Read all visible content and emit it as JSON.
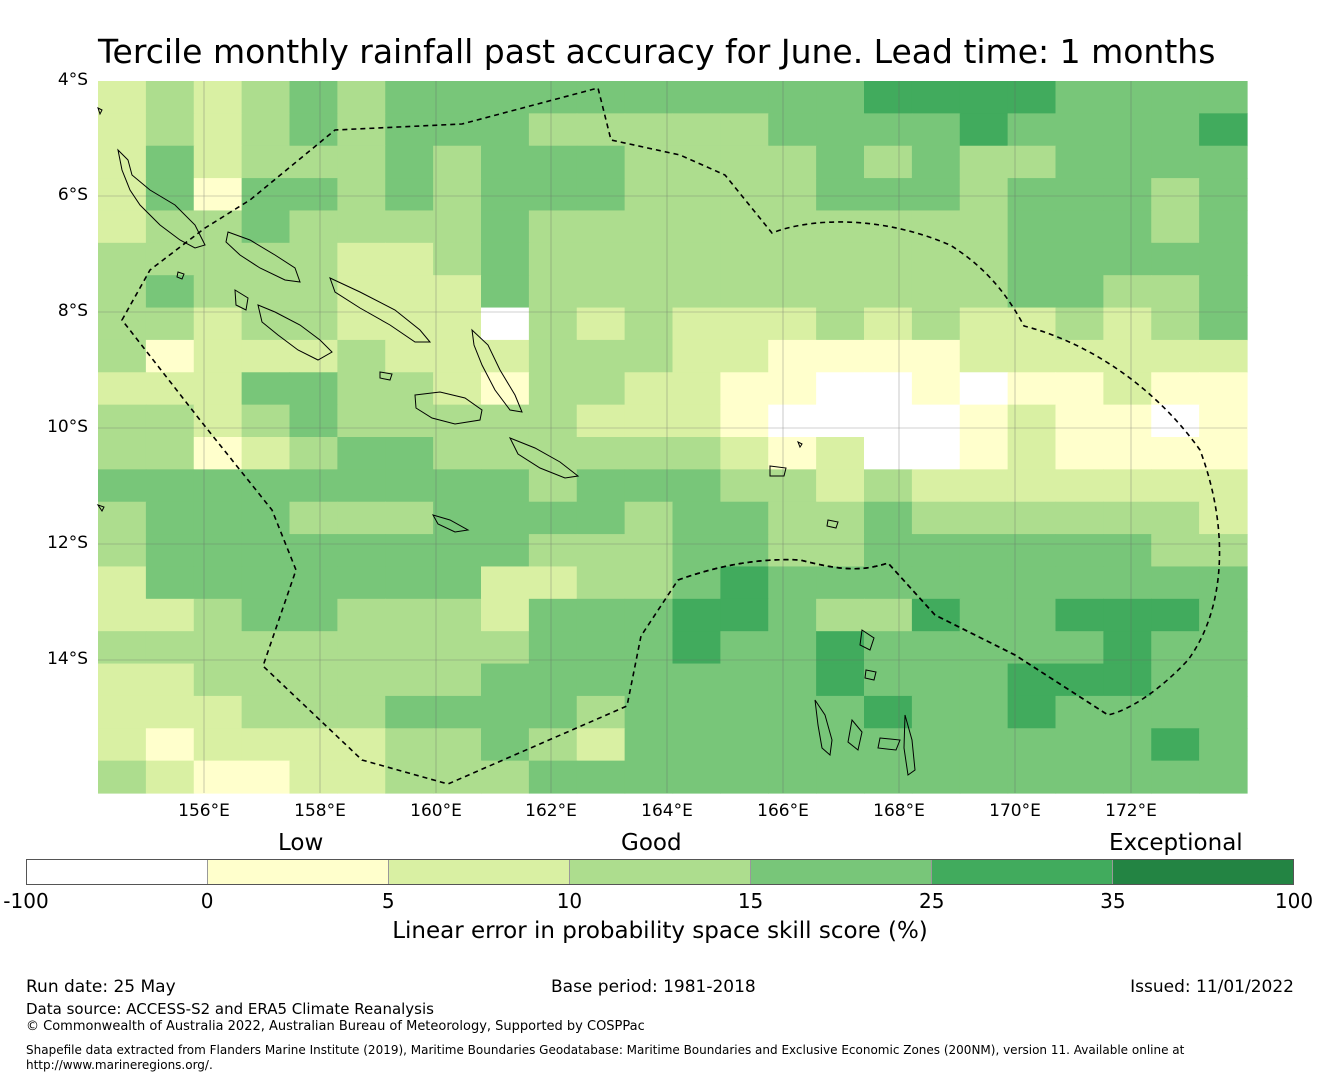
{
  "title": "Tercile monthly rainfall past accuracy for June. Lead time: 1 months",
  "map": {
    "lat_labels": [
      "4°S",
      "6°S",
      "8°S",
      "10°S",
      "12°S",
      "14°S"
    ],
    "lon_labels": [
      "156°E",
      "158°E",
      "160°E",
      "162°E",
      "164°E",
      "166°E",
      "168°E",
      "170°E",
      "172°E"
    ],
    "palette": [
      "#ffffff",
      "#ffffcc",
      "#d9f0a3",
      "#addd8e",
      "#78c679",
      "#41ab5d",
      "#238443"
    ],
    "grid_levels": [
      [
        2,
        3,
        2,
        3,
        4,
        3,
        4,
        4,
        4,
        4,
        4,
        4,
        4,
        4,
        4,
        4,
        5,
        5,
        5,
        5,
        4,
        4,
        4,
        4
      ],
      [
        2,
        3,
        2,
        3,
        4,
        3,
        4,
        4,
        4,
        3,
        3,
        3,
        3,
        3,
        4,
        4,
        4,
        4,
        5,
        4,
        4,
        4,
        4,
        5
      ],
      [
        2,
        4,
        2,
        3,
        3,
        3,
        4,
        3,
        4,
        4,
        4,
        3,
        3,
        3,
        3,
        4,
        3,
        4,
        3,
        3,
        4,
        4,
        4,
        4
      ],
      [
        2,
        4,
        1,
        4,
        4,
        3,
        4,
        3,
        4,
        4,
        4,
        3,
        3,
        3,
        3,
        4,
        4,
        4,
        3,
        4,
        4,
        4,
        3,
        4
      ],
      [
        2,
        3,
        3,
        4,
        3,
        3,
        3,
        3,
        4,
        3,
        3,
        3,
        3,
        3,
        3,
        3,
        3,
        3,
        3,
        4,
        4,
        4,
        3,
        4
      ],
      [
        3,
        3,
        3,
        3,
        3,
        2,
        2,
        3,
        4,
        3,
        3,
        3,
        3,
        3,
        3,
        3,
        3,
        3,
        3,
        4,
        4,
        4,
        4,
        4
      ],
      [
        3,
        4,
        3,
        3,
        3,
        2,
        2,
        2,
        4,
        3,
        3,
        3,
        3,
        3,
        3,
        3,
        3,
        3,
        3,
        4,
        4,
        3,
        3,
        4
      ],
      [
        3,
        3,
        2,
        3,
        3,
        2,
        2,
        2,
        0,
        3,
        2,
        3,
        2,
        2,
        2,
        3,
        2,
        3,
        2,
        2,
        3,
        2,
        3,
        4
      ],
      [
        3,
        1,
        2,
        2,
        2,
        3,
        2,
        2,
        2,
        3,
        3,
        3,
        2,
        2,
        1,
        1,
        1,
        1,
        2,
        2,
        2,
        2,
        2,
        2
      ],
      [
        2,
        2,
        2,
        4,
        4,
        3,
        3,
        2,
        1,
        3,
        3,
        2,
        2,
        1,
        1,
        0,
        0,
        1,
        0,
        1,
        1,
        2,
        1,
        1
      ],
      [
        3,
        3,
        2,
        3,
        4,
        3,
        3,
        3,
        3,
        3,
        2,
        2,
        2,
        1,
        0,
        0,
        0,
        0,
        1,
        2,
        1,
        1,
        0,
        1
      ],
      [
        3,
        3,
        1,
        2,
        3,
        4,
        4,
        3,
        3,
        3,
        3,
        3,
        3,
        2,
        1,
        2,
        0,
        0,
        1,
        2,
        1,
        1,
        1,
        1
      ],
      [
        4,
        4,
        4,
        4,
        4,
        4,
        4,
        4,
        4,
        3,
        4,
        4,
        4,
        3,
        3,
        2,
        3,
        2,
        2,
        2,
        2,
        2,
        2,
        2
      ],
      [
        3,
        4,
        4,
        4,
        3,
        3,
        3,
        4,
        4,
        4,
        4,
        3,
        4,
        4,
        3,
        3,
        4,
        3,
        3,
        3,
        3,
        3,
        3,
        2
      ],
      [
        3,
        4,
        4,
        4,
        4,
        4,
        4,
        4,
        4,
        3,
        3,
        3,
        4,
        4,
        3,
        3,
        4,
        4,
        4,
        4,
        4,
        4,
        3,
        3
      ],
      [
        2,
        4,
        4,
        4,
        4,
        4,
        4,
        4,
        2,
        2,
        3,
        3,
        4,
        5,
        4,
        4,
        4,
        4,
        4,
        4,
        4,
        4,
        4,
        4
      ],
      [
        2,
        2,
        3,
        4,
        4,
        3,
        3,
        3,
        2,
        4,
        4,
        4,
        5,
        5,
        4,
        3,
        3,
        5,
        4,
        4,
        5,
        5,
        5,
        4
      ],
      [
        3,
        3,
        3,
        3,
        3,
        3,
        3,
        3,
        3,
        4,
        4,
        4,
        5,
        4,
        4,
        5,
        4,
        4,
        4,
        4,
        4,
        5,
        4,
        4
      ],
      [
        2,
        2,
        3,
        3,
        3,
        3,
        3,
        3,
        4,
        4,
        4,
        4,
        4,
        4,
        4,
        5,
        4,
        4,
        4,
        5,
        5,
        5,
        4,
        4
      ],
      [
        2,
        2,
        2,
        3,
        3,
        3,
        4,
        4,
        4,
        4,
        3,
        4,
        4,
        4,
        4,
        4,
        5,
        4,
        4,
        5,
        4,
        4,
        4,
        4
      ],
      [
        2,
        1,
        2,
        2,
        2,
        2,
        3,
        3,
        4,
        3,
        2,
        4,
        4,
        4,
        4,
        4,
        4,
        4,
        4,
        4,
        4,
        4,
        5,
        4
      ],
      [
        3,
        2,
        1,
        1,
        2,
        2,
        3,
        3,
        3,
        4,
        4,
        4,
        4,
        4,
        4,
        4,
        4,
        4,
        4,
        4,
        4,
        4,
        4,
        4
      ]
    ]
  },
  "legend": {
    "category_labels": [
      "Low",
      "Good",
      "Exceptional"
    ],
    "colors": [
      "#ffffff",
      "#ffffcc",
      "#d9f0a3",
      "#addd8e",
      "#78c679",
      "#41ab5d",
      "#238443"
    ],
    "ticks": [
      "-100",
      "0",
      "5",
      "10",
      "15",
      "25",
      "35",
      "100"
    ],
    "title": "Linear error in probability space skill score (%)"
  },
  "footer": {
    "run_date": "Run date: 25 May",
    "base_period": "Base period: 1981-2018",
    "issued": "Issued: 11/01/2022",
    "data_source": "Data source: ACCESS-S2 and ERA5 Climate Reanalysis",
    "copyright": "© Commonwealth of Australia 2022, Australian Bureau of Meteorology, Supported by COSPPac",
    "shapefile_line1": "Shapefile data extracted from Flanders Marine Institute (2019), Maritime Boundaries Geodatabase: Maritime Boundaries and Exclusive Economic Zones (200NM), version 11. Available online at",
    "shapefile_line2": "http://www.marineregions.org/."
  }
}
